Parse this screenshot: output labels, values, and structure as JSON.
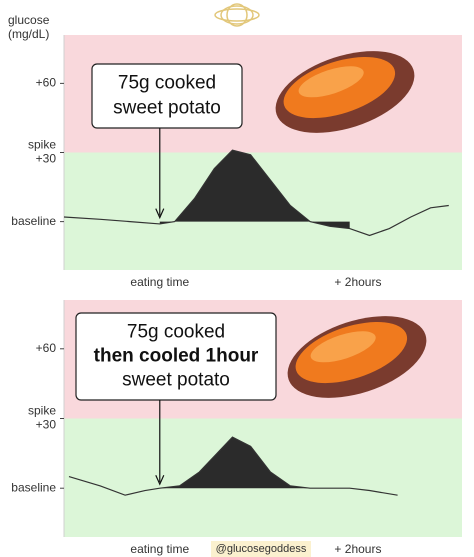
{
  "chart_data": [
    {
      "type": "area-line",
      "y_label": "glucose\n(mg/dL)",
      "annotation": [
        "75g cooked",
        "sweet potato"
      ],
      "annotation_weights": [
        "normal",
        "normal"
      ],
      "x": [
        -58,
        -36,
        -18,
        0,
        9,
        21,
        33,
        44,
        55,
        67,
        79,
        91,
        103,
        115,
        127,
        139,
        152,
        164,
        175
      ],
      "values": [
        2,
        1,
        0,
        -1,
        0,
        10,
        23,
        31,
        29,
        18,
        7,
        0,
        -2,
        -3,
        -6,
        -3,
        2,
        6,
        7
      ],
      "xlim": [
        -58,
        183
      ],
      "ylim": [
        -21,
        81
      ],
      "xticks": [
        {
          "value": 0,
          "label": "eating time"
        },
        {
          "value": 120,
          "label": "+ 2hours"
        }
      ],
      "yticks": [
        {
          "value": 0,
          "label": "baseline"
        },
        {
          "value": 30,
          "label": "spike\n+30"
        },
        {
          "value": 60,
          "label": "+60"
        }
      ],
      "bands": [
        {
          "range": [
            30,
            81
          ],
          "color": "#f9d8dc"
        },
        {
          "range": [
            -21,
            30
          ],
          "color": "#dcf6d8"
        }
      ],
      "line_color": "#333333",
      "fill_color": "#2b2b2b"
    },
    {
      "type": "area-line",
      "annotation": [
        "75g cooked",
        "then cooled 1hour",
        "sweet potato"
      ],
      "annotation_weights": [
        "normal",
        "bold",
        "normal"
      ],
      "x": [
        -55,
        -36,
        -21,
        -9,
        0,
        12,
        24,
        36,
        44,
        55,
        67,
        79,
        91,
        115,
        127,
        144
      ],
      "values": [
        5,
        1,
        -3,
        -1,
        0,
        1,
        7,
        16,
        22,
        18,
        7,
        1,
        0,
        0,
        -1,
        -3
      ],
      "xlim": [
        -58,
        183
      ],
      "ylim": [
        -21,
        81
      ],
      "xticks": [
        {
          "value": 0,
          "label": "eating time"
        },
        {
          "value": 120,
          "label": "+ 2hours"
        }
      ],
      "yticks": [
        {
          "value": 0,
          "label": "baseline"
        },
        {
          "value": 30,
          "label": "spike\n+30"
        },
        {
          "value": 60,
          "label": "+60"
        }
      ],
      "bands": [
        {
          "range": [
            30,
            81
          ],
          "color": "#f9d8dc"
        },
        {
          "range": [
            -21,
            30
          ],
          "color": "#dcf6d8"
        }
      ],
      "line_color": "#333333",
      "fill_color": "#2b2b2b"
    }
  ],
  "credit": "@glucosegoddess"
}
